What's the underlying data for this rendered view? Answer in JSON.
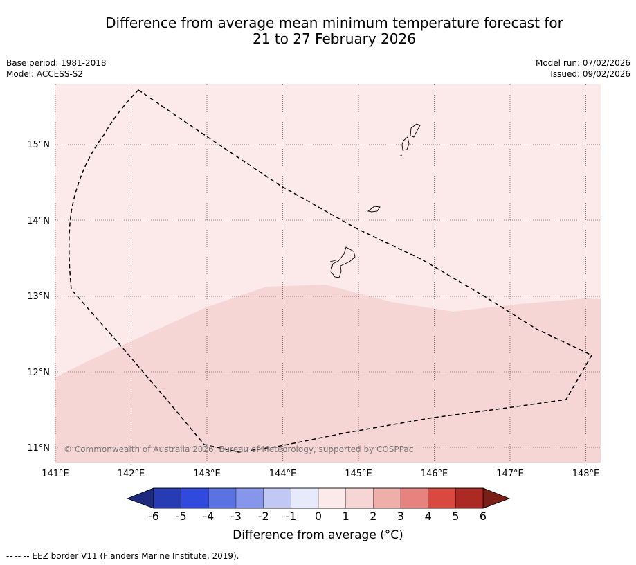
{
  "title": {
    "line1": "Difference from average mean minimum temperature forecast for",
    "line2": "21 to 27 February 2026"
  },
  "meta": {
    "base_period": "Base period: 1981-2018",
    "model": "Model: ACCESS-S2",
    "model_run": "Model run: 07/02/2026",
    "issued": "Issued: 09/02/2026"
  },
  "map": {
    "lon_labels": [
      "141°E",
      "142°E",
      "143°E",
      "144°E",
      "145°E",
      "146°E",
      "147°E",
      "148°E"
    ],
    "lat_labels": [
      "15°N",
      "14°N",
      "13°N",
      "12°N",
      "11°N"
    ],
    "copyright": "© Commonwealth of Australia 2026, Bureau of Meteorology, supported by COSPPac",
    "zone_colors": {
      "c0_1": "#fbeae9",
      "c1_2": "#f5d6d4"
    }
  },
  "colorbar": {
    "ticks": [
      "-6",
      "-5",
      "-4",
      "-3",
      "-2",
      "-1",
      "0",
      "1",
      "2",
      "3",
      "4",
      "5",
      "6"
    ],
    "colors": [
      "#273cb4",
      "#304ade",
      "#5b72e3",
      "#8696ea",
      "#c0c8f3",
      "#e6eafb",
      "#fbeae9",
      "#f5d6d4",
      "#eeaeaa",
      "#e7837e",
      "#d9493f",
      "#ab2a23"
    ],
    "under_color": "#1d2a7e",
    "over_color": "#7a1e18",
    "label": "Difference from average (°C)"
  },
  "footer": {
    "legend": "--  --  -- EEZ border V11 (Flanders Marine Institute, 2019)."
  }
}
